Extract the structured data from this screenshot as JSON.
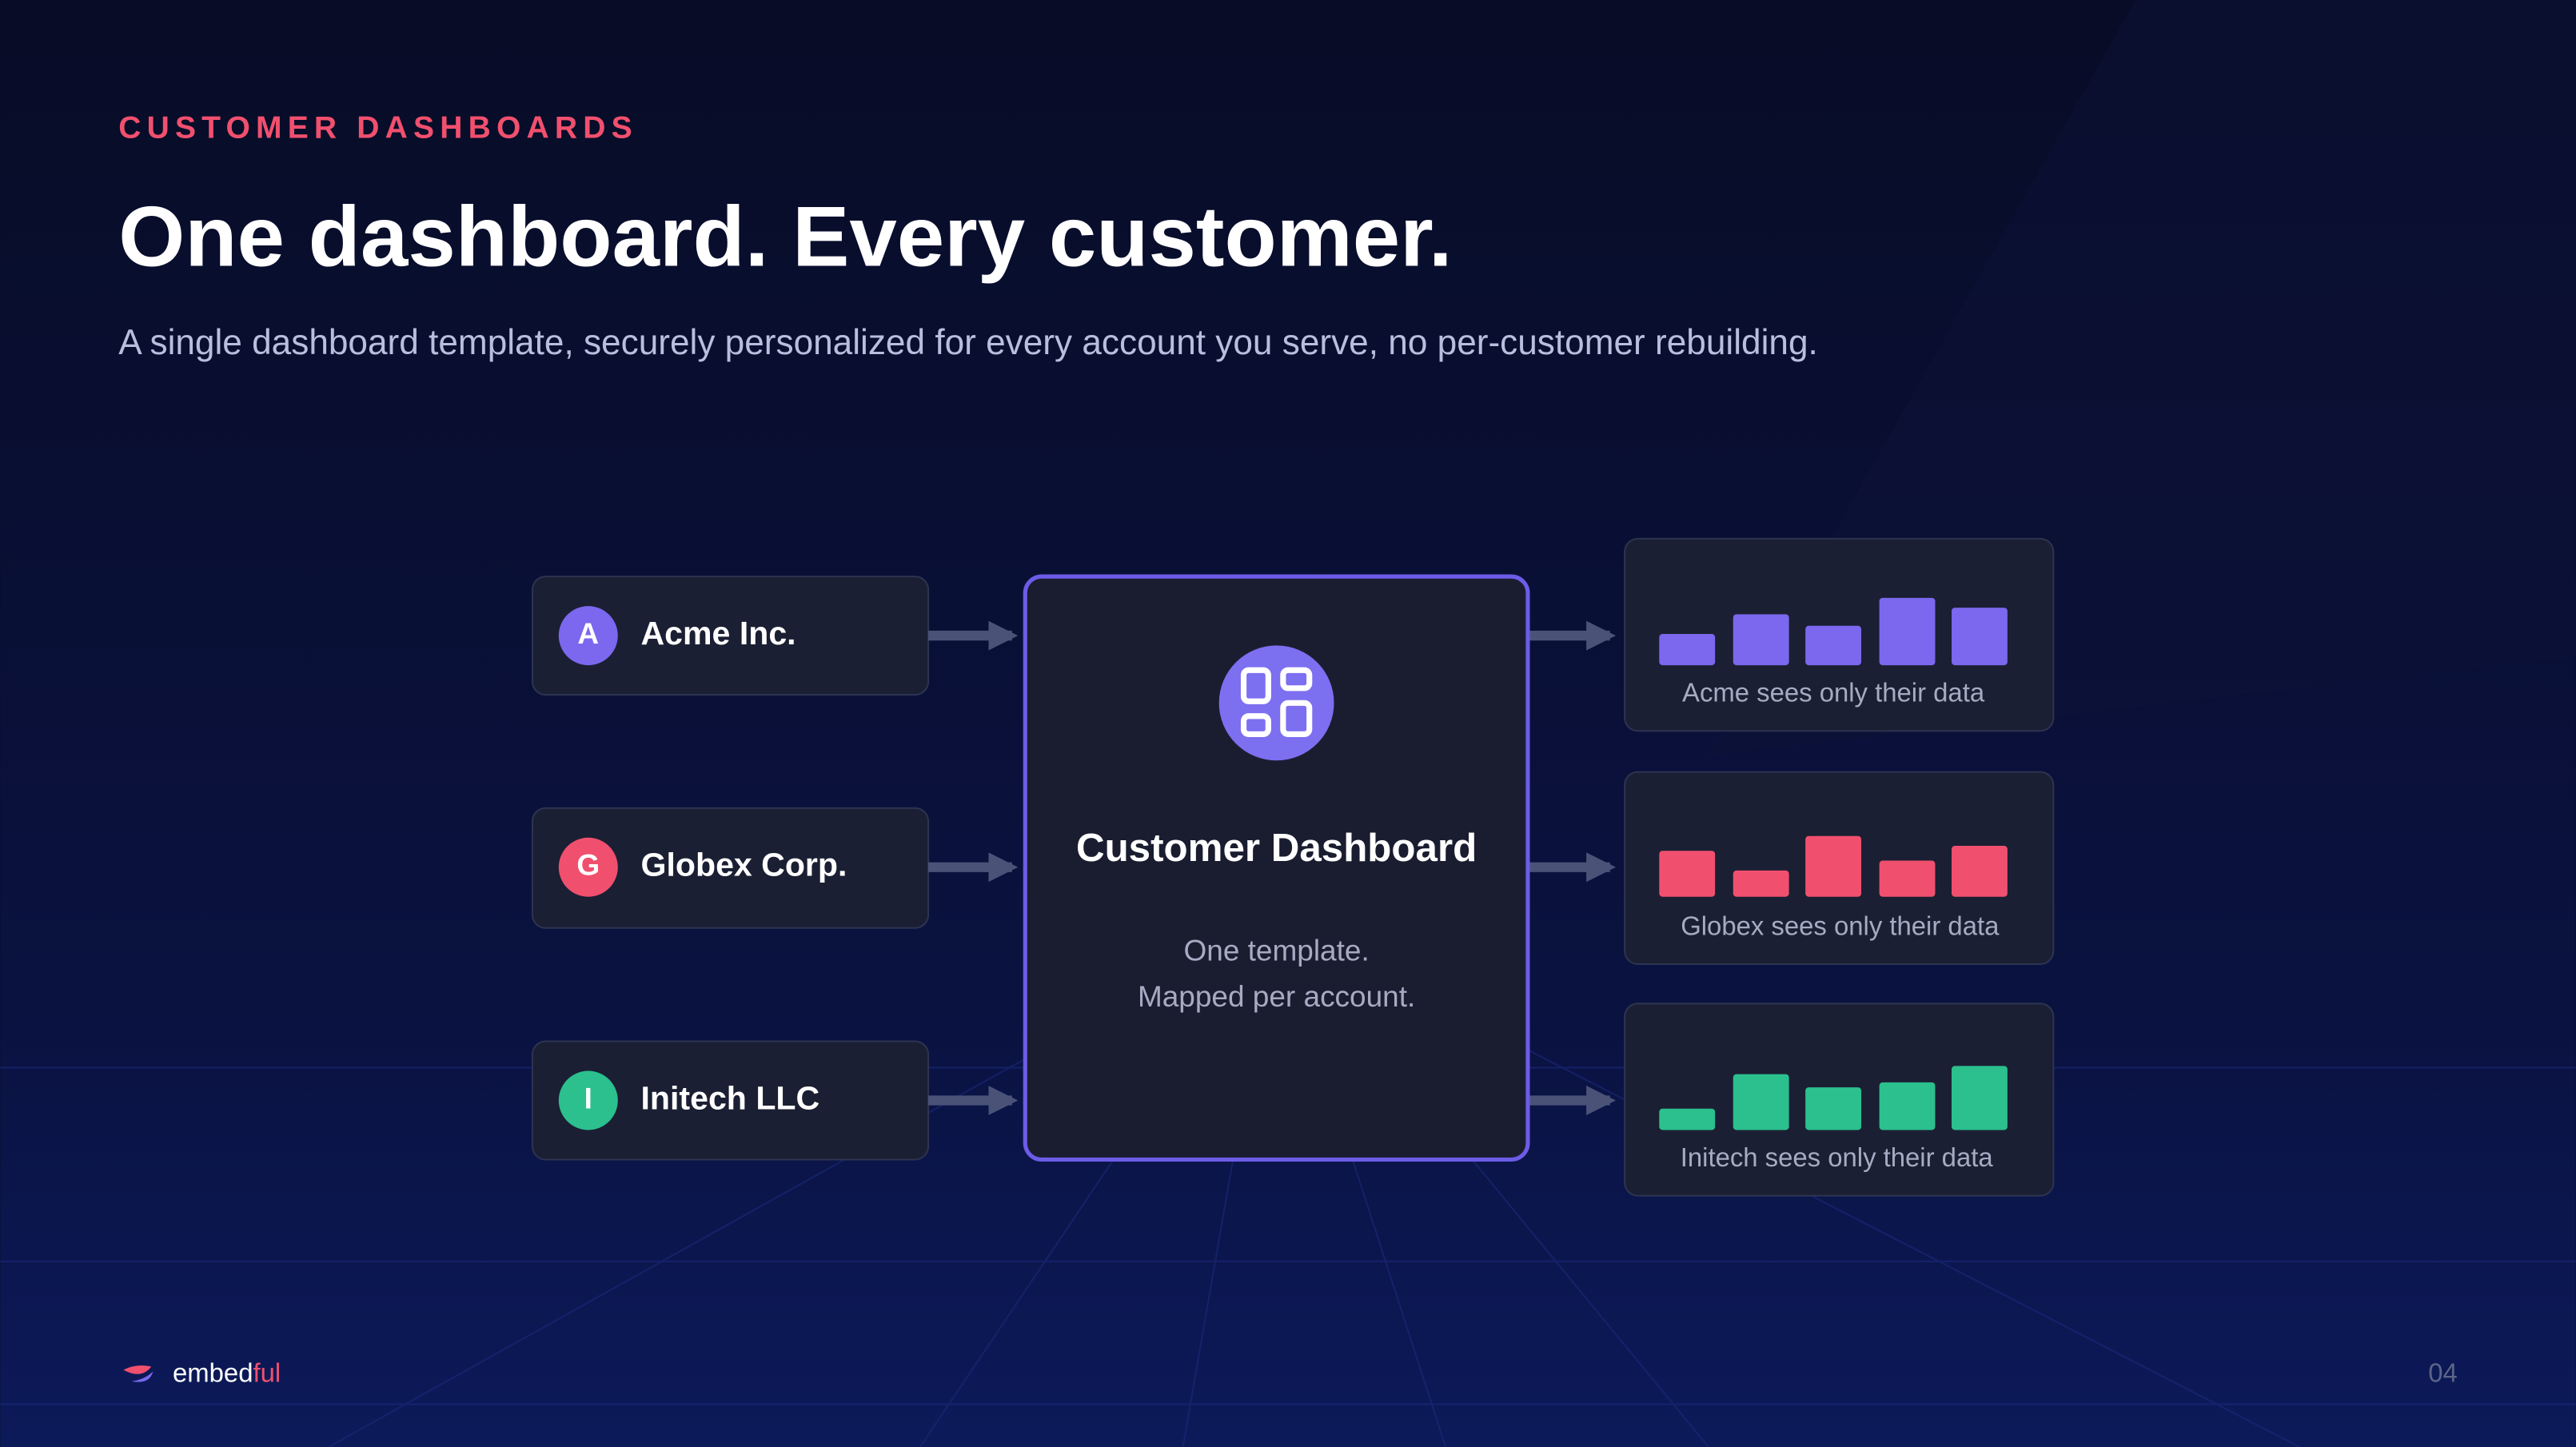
{
  "header": {
    "eyebrow": "CUSTOMER DASHBOARDS",
    "title": "One dashboard. Every customer.",
    "subtitle": "A single dashboard template, securely personalized for every account you serve, no per-customer rebuilding."
  },
  "customers": [
    {
      "initial": "A",
      "name": "Acme Inc."
    },
    {
      "initial": "G",
      "name": "Globex Corp."
    },
    {
      "initial": "I",
      "name": "Initech LLC"
    }
  ],
  "center": {
    "title": "Customer Dashboard",
    "lines": [
      "One template.",
      "Mapped per account."
    ]
  },
  "outputs": [
    {
      "caption": "Acme sees only their data"
    },
    {
      "caption": "Globex sees only their data"
    },
    {
      "caption": "Initech sees only their data"
    }
  ],
  "footer": {
    "logo_main": "embed",
    "logo_accent": "ful",
    "page": "04"
  }
}
